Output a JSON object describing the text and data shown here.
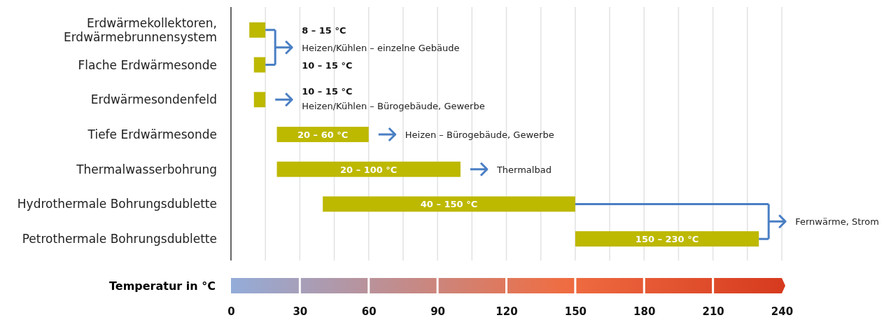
{
  "chart_data": {
    "type": "bar",
    "orientation": "horizontal",
    "xlabel": "Temperatur in °C",
    "categories": [
      "Erdwärmekollektoren,\nErdwärmebrunnensystem",
      "Flache Erdwärmesonde",
      "Erdwärmesondenfeld",
      "Tiefe Erdwärmesonde",
      "Thermalwasserbohrung",
      "Hydrothermale Bohrungsdublette",
      "Petrothermale Bohrungsdublette"
    ],
    "base": [
      8,
      10,
      10,
      20,
      20,
      40,
      150
    ],
    "values": [
      7,
      5,
      5,
      40,
      80,
      110,
      80
    ],
    "color": "#bdb800",
    "xlim": [
      0,
      240
    ],
    "xticks": [
      0,
      {
        "value": 15,
        "label": null
      },
      30,
      {
        "value": 45,
        "label": null
      },
      60,
      {
        "value": 75,
        "label": null
      },
      90,
      {
        "value": 105,
        "label": null
      },
      120,
      {
        "value": 135,
        "label": null
      },
      150,
      {
        "value": 165,
        "label": null
      },
      180,
      {
        "value": 195,
        "label": null
      },
      210,
      {
        "value": 225,
        "label": null
      },
      240
    ],
    "grid": "x",
    "annotations": [
      "8 – 15 °C",
      "10 – 15 °C",
      "10 – 15 °C",
      "20 – 60 °C",
      "20 – 100 °C",
      "40 – 150 °C",
      "150 – 230 °C",
      "Heizen/Kühlen – einzelne Gebäude",
      "Heizen/Kühlen – Bürogebäude, Gewerbe",
      "Heizen – Bürogebäude, Gewerbe",
      "Thermalbad",
      "Fernwärme, Strom"
    ]
  }
}
